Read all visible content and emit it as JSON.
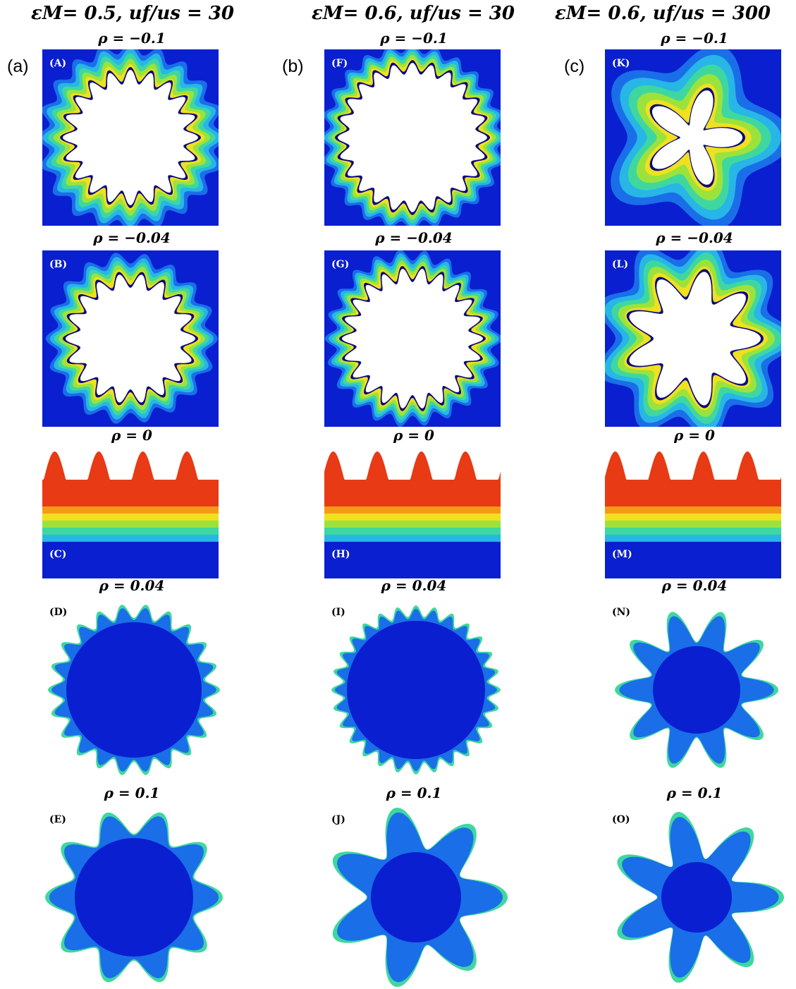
{
  "columns": [
    {
      "header": "εM= 0.5, uf/us = 30",
      "label": "(a)"
    },
    {
      "header": "εM= 0.6, uf/us = 30",
      "label": "(b)"
    },
    {
      "header": "εM= 0.6, uf/us = 300",
      "label": "(c)"
    }
  ],
  "rows": [
    {
      "rho": "ρ = −0.1"
    },
    {
      "rho": "ρ = −0.04"
    },
    {
      "rho": "ρ = 0"
    },
    {
      "rho": "ρ = 0.04"
    },
    {
      "rho": "ρ = 0.1"
    }
  ],
  "panels": [
    [
      "(A)",
      "(B)",
      "(C)",
      "(D)",
      "(E)"
    ],
    [
      "(F)",
      "(G)",
      "(H)",
      "(I)",
      "(J)"
    ],
    [
      "(K)",
      "(L)",
      "(M)",
      "(N)",
      "(O)"
    ]
  ],
  "colors": {
    "background_blue": "#0a1fd0",
    "contour": [
      "#1a6ee8",
      "#27b6e6",
      "#3fd7a0",
      "#9be33c",
      "#f0e020",
      "#f59a18",
      "#e83a14"
    ],
    "void": "#ffffff",
    "rim": "#0a0a7a"
  }
}
